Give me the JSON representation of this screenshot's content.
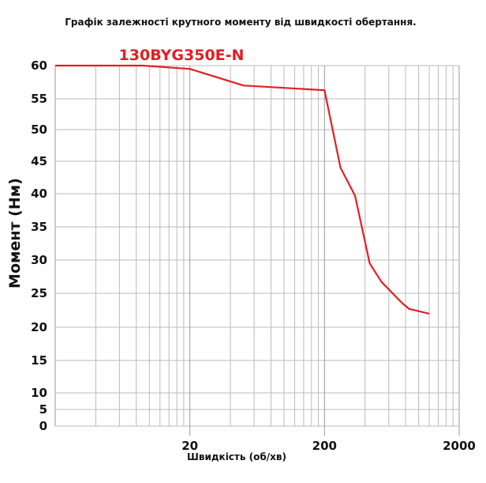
{
  "chart_data": {
    "type": "line",
    "title": "Графік залежності крутного моменту від швидкості обертання.",
    "xlabel": "Швидкість (об/хв)",
    "ylabel": "Момент (Нм)",
    "xscale": "log",
    "xlim": [
      2,
      2000
    ],
    "ylim": [
      0,
      60
    ],
    "x_tick_labels": [
      "20",
      "200",
      "2000"
    ],
    "x_ticks": [
      20,
      200,
      2000
    ],
    "y_tick_labels": [
      "60",
      "55",
      "50",
      "45",
      "40",
      "35",
      "30",
      "25",
      "20",
      "15",
      "10",
      "5",
      "0"
    ],
    "y_ticks": [
      60,
      55,
      50,
      45,
      40,
      35,
      30,
      25,
      20,
      15,
      10,
      5,
      0
    ],
    "grid": true,
    "series": [
      {
        "name": "130BYG350E-N",
        "color": "#e31e24",
        "x": [
          2,
          9,
          20,
          50,
          200,
          263,
          337,
          433,
          530,
          750,
          850,
          1200
        ],
        "y": [
          60,
          60,
          59.5,
          57,
          56.3,
          44,
          39.7,
          29.5,
          26.7,
          23.6,
          22.7,
          22
        ]
      }
    ]
  }
}
